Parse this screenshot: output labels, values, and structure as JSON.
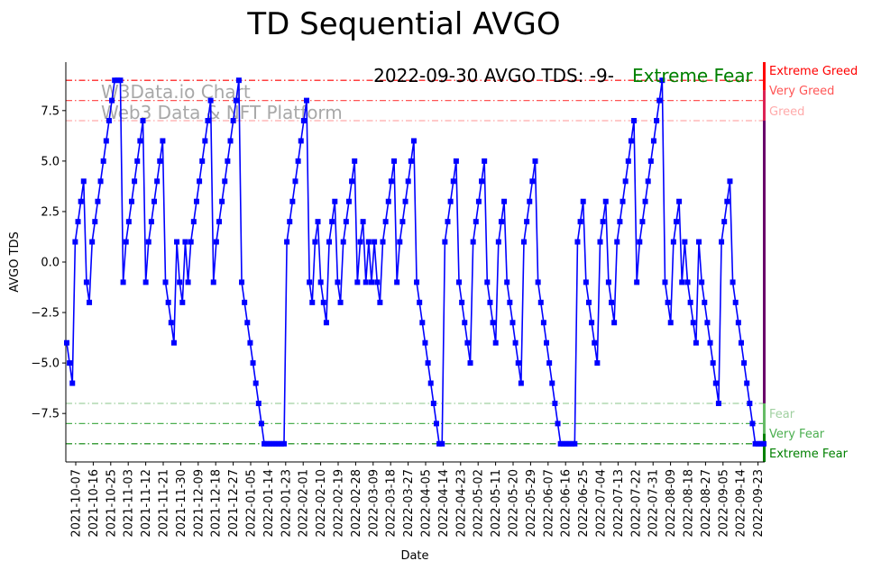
{
  "chart_data": {
    "type": "line",
    "title": "TD Sequential AVGO",
    "xlabel": "Date",
    "ylabel": "AVGO TDS",
    "ylim": [
      -9.9,
      9.9
    ],
    "y_ticks": [
      -7.5,
      -5.0,
      -2.5,
      0.0,
      2.5,
      5.0,
      7.5
    ],
    "y_tick_labels": [
      "−7.5",
      "−5.0",
      "−2.5",
      "0.0",
      "2.5",
      "5.0",
      "7.5"
    ],
    "x_tick_labels": [
      "2021-10-07",
      "2021-10-16",
      "2021-10-25",
      "2021-11-03",
      "2021-11-12",
      "2021-11-21",
      "2021-11-30",
      "2021-12-09",
      "2021-12-18",
      "2021-12-27",
      "2022-01-05",
      "2022-01-14",
      "2022-01-23",
      "2022-02-01",
      "2022-02-10",
      "2022-02-19",
      "2022-02-28",
      "2022-03-09",
      "2022-03-18",
      "2022-03-27",
      "2022-04-05",
      "2022-04-14",
      "2022-04-23",
      "2022-05-02",
      "2022-05-11",
      "2022-05-20",
      "2022-05-29",
      "2022-06-07",
      "2022-06-16",
      "2022-06-25",
      "2022-07-04",
      "2022-07-13",
      "2022-07-22",
      "2022-07-31",
      "2022-08-09",
      "2022-08-18",
      "2022-08-27",
      "2022-09-05",
      "2022-09-14",
      "2022-09-23"
    ],
    "series": [
      {
        "name": "AVGO TDS",
        "color": "#0000ff",
        "values": [
          -4,
          -5,
          -6,
          1,
          2,
          3,
          4,
          -1,
          -2,
          1,
          2,
          3,
          4,
          5,
          6,
          7,
          8,
          9,
          9,
          9,
          -1,
          1,
          2,
          3,
          4,
          5,
          6,
          7,
          -1,
          1,
          2,
          3,
          4,
          5,
          6,
          -1,
          -2,
          -3,
          -4,
          1,
          -1,
          -2,
          1,
          -1,
          1,
          2,
          3,
          4,
          5,
          6,
          7,
          8,
          -1,
          1,
          2,
          3,
          4,
          5,
          6,
          7,
          8,
          9,
          -1,
          -2,
          -3,
          -4,
          -5,
          -6,
          -7,
          -8,
          -9,
          -9,
          -9,
          -9,
          -9,
          -9,
          -9,
          -9,
          1,
          2,
          3,
          4,
          5,
          6,
          7,
          8,
          -1,
          -2,
          1,
          2,
          -1,
          -2,
          -3,
          1,
          2,
          3,
          -1,
          -2,
          1,
          2,
          3,
          4,
          5,
          -1,
          1,
          2,
          -1,
          1,
          -1,
          1,
          -1,
          -2,
          1,
          2,
          3,
          4,
          5,
          -1,
          1,
          2,
          3,
          4,
          5,
          6,
          -1,
          -2,
          -3,
          -4,
          -5,
          -6,
          -7,
          -8,
          -9,
          -9,
          1,
          2,
          3,
          4,
          5,
          -1,
          -2,
          -3,
          -4,
          -5,
          1,
          2,
          3,
          4,
          5,
          -1,
          -2,
          -3,
          -4,
          1,
          2,
          3,
          -1,
          -2,
          -3,
          -4,
          -5,
          -6,
          1,
          2,
          3,
          4,
          5,
          -1,
          -2,
          -3,
          -4,
          -5,
          -6,
          -7,
          -8,
          -9,
          -9,
          -9,
          -9,
          -9,
          -9,
          1,
          2,
          3,
          -1,
          -2,
          -3,
          -4,
          -5,
          1,
          2,
          3,
          -1,
          -2,
          -3,
          1,
          2,
          3,
          4,
          5,
          6,
          7,
          -1,
          1,
          2,
          3,
          4,
          5,
          6,
          7,
          8,
          9,
          -1,
          -2,
          -3,
          1,
          2,
          3,
          -1,
          1,
          -1,
          -2,
          -3,
          -4,
          1,
          -1,
          -2,
          -3,
          -4,
          -5,
          -6,
          -7,
          1,
          2,
          3,
          4,
          -1,
          -2,
          -3,
          -4,
          -5,
          -6,
          -7,
          -8,
          -9,
          -9,
          -9,
          -9
        ]
      }
    ],
    "levels": [
      {
        "value": 9,
        "label": "Extreme Greed",
        "color": "#ff0000",
        "style": "dashdot"
      },
      {
        "value": 8,
        "label": "Very Greed",
        "color": "#ff5555",
        "style": "dashdot"
      },
      {
        "value": 7,
        "label": "Greed",
        "color": "#ffaaaa",
        "style": "dashdot"
      },
      {
        "value": -7,
        "label": "Fear",
        "color": "#a0d0a0",
        "style": "dashdot"
      },
      {
        "value": -8,
        "label": "Very Fear",
        "color": "#4caf50",
        "style": "dashdot"
      },
      {
        "value": -9,
        "label": "Extreme Fear",
        "color": "#008000",
        "style": "dashdot"
      }
    ],
    "annotation": {
      "text": "2022-09-30 AVGO TDS: -9-",
      "zone_text": "Extreme Fear",
      "zone_color": "#008000"
    },
    "watermark": {
      "line1": "W3Data.io Chart",
      "line2": "Web3 Data & NFT Platform"
    },
    "grid": false,
    "legend": "none"
  }
}
